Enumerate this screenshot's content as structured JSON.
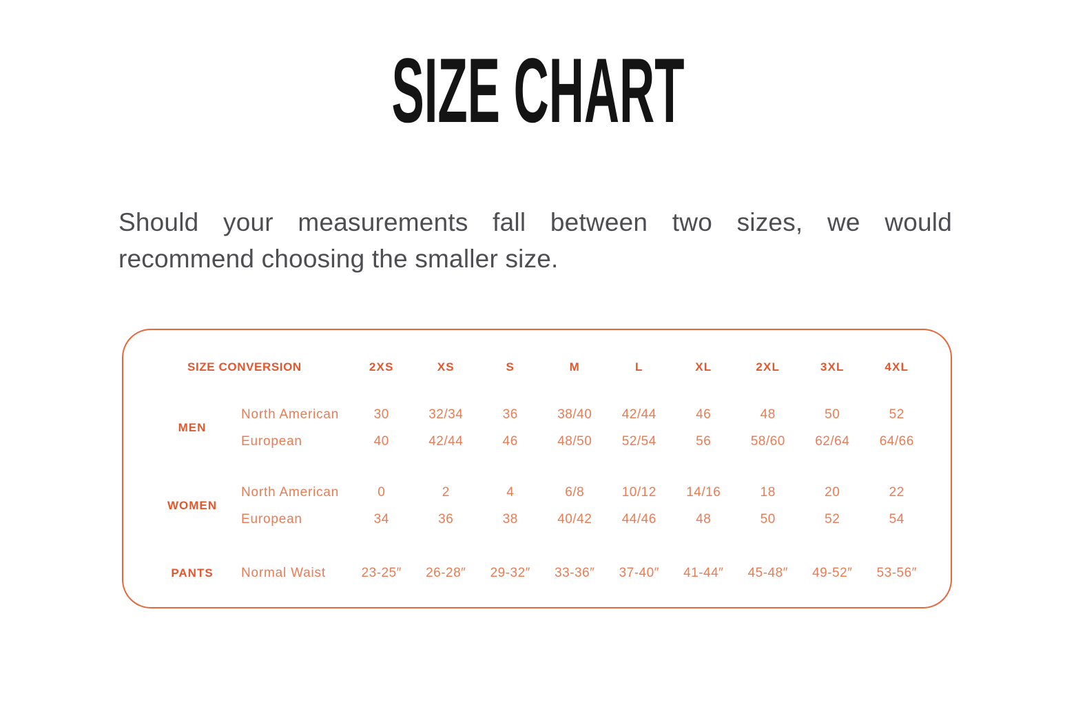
{
  "title": "SIZE CHART",
  "intro": {
    "line1": "Should your measurements fall between two sizes, we would",
    "line2": "recommend choosing the smaller size."
  },
  "colors": {
    "title": "#141414",
    "intro_text": "#4e4e52",
    "table_border": "#e4683a",
    "header_orange": "#e4572c",
    "value_orange": "#e87c54",
    "background": "#ffffff"
  },
  "table": {
    "header_label": "SIZE CONVERSION",
    "sizes": [
      "2XS",
      "XS",
      "S",
      "M",
      "L",
      "XL",
      "2XL",
      "3XL",
      "4XL"
    ],
    "groups": [
      {
        "label": "MEN",
        "rows": [
          {
            "label": "North American",
            "values": [
              "30",
              "32/34",
              "36",
              "38/40",
              "42/44",
              "46",
              "48",
              "50",
              "52"
            ]
          },
          {
            "label": "European",
            "values": [
              "40",
              "42/44",
              "46",
              "48/50",
              "52/54",
              "56",
              "58/60",
              "62/64",
              "64/66"
            ]
          }
        ]
      },
      {
        "label": "WOMEN",
        "rows": [
          {
            "label": "North American",
            "values": [
              "0",
              "2",
              "4",
              "6/8",
              "10/12",
              "14/16",
              "18",
              "20",
              "22"
            ]
          },
          {
            "label": "European",
            "values": [
              "34",
              "36",
              "38",
              "40/42",
              "44/46",
              "48",
              "50",
              "52",
              "54"
            ]
          }
        ]
      },
      {
        "label": "PANTS",
        "rows": [
          {
            "label": "Normal Waist",
            "values": [
              "23-25″",
              "26-28″",
              "29-32″",
              "33-36″",
              "37-40″",
              "41-44″",
              "45-48″",
              "49-52″",
              "53-56″"
            ]
          }
        ]
      }
    ]
  }
}
